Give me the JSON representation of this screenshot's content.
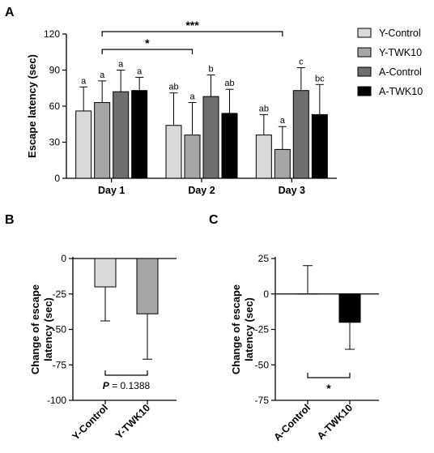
{
  "figure": {
    "panel_a": "A",
    "panel_b": "B",
    "panel_c": "C"
  },
  "colors": {
    "Y-Control": "#d9d9d9",
    "Y-TWK10": "#a6a6a6",
    "A-Control": "#6e6e6e",
    "A-TWK10": "#000000"
  },
  "chart_data": [
    {
      "panel": "A",
      "type": "bar",
      "ylabel": "Escape latency (sec)",
      "ylim": [
        0,
        120
      ],
      "yticks": [
        0,
        30,
        60,
        90,
        120
      ],
      "categories": [
        "Day 1",
        "Day 2",
        "Day 3"
      ],
      "legend_position": "right",
      "series": [
        {
          "name": "Y-Control",
          "values": [
            56,
            44,
            36
          ],
          "errors": [
            20,
            27,
            17
          ],
          "letters": [
            "a",
            "ab",
            "ab"
          ]
        },
        {
          "name": "Y-TWK10",
          "values": [
            63,
            36,
            24
          ],
          "errors": [
            18,
            27,
            19
          ],
          "letters": [
            "a",
            "a",
            "a"
          ]
        },
        {
          "name": "A-Control",
          "values": [
            72,
            68,
            73
          ],
          "errors": [
            18,
            18,
            19
          ],
          "letters": [
            "a",
            "b",
            "c"
          ]
        },
        {
          "name": "A-TWK10",
          "values": [
            73,
            54,
            53
          ],
          "errors": [
            11,
            20,
            25
          ],
          "letters": [
            "a",
            "ab",
            "bc"
          ]
        }
      ],
      "significance": [
        {
          "label": "*",
          "from": "Y-TWK10 Day 1",
          "to": "Y-TWK10 Day 2"
        },
        {
          "label": "***",
          "from": "Y-TWK10 Day 1",
          "to": "Y-TWK10 Day 3"
        }
      ]
    },
    {
      "panel": "B",
      "type": "bar",
      "ylabel": [
        "Change of escape",
        "latency (sec)"
      ],
      "ylim": [
        -100,
        0
      ],
      "yticks": [
        0,
        -25,
        -50,
        -75,
        -100
      ],
      "categories": [
        "Y-Control",
        "Y-TWK10"
      ],
      "values": [
        -20,
        -39
      ],
      "errors": [
        24,
        32
      ],
      "annotation": {
        "prefix": "P",
        "text": " = 0.1388"
      }
    },
    {
      "panel": "C",
      "type": "bar",
      "ylabel": [
        "Change of escape",
        "latency (sec)"
      ],
      "ylim": [
        -75,
        25
      ],
      "yticks": [
        25,
        0,
        -25,
        -50,
        -75
      ],
      "categories": [
        "A-Control",
        "A-TWK10"
      ],
      "values": [
        0,
        -20
      ],
      "errors": [
        20,
        19
      ],
      "annotation": {
        "text": "*"
      }
    }
  ]
}
